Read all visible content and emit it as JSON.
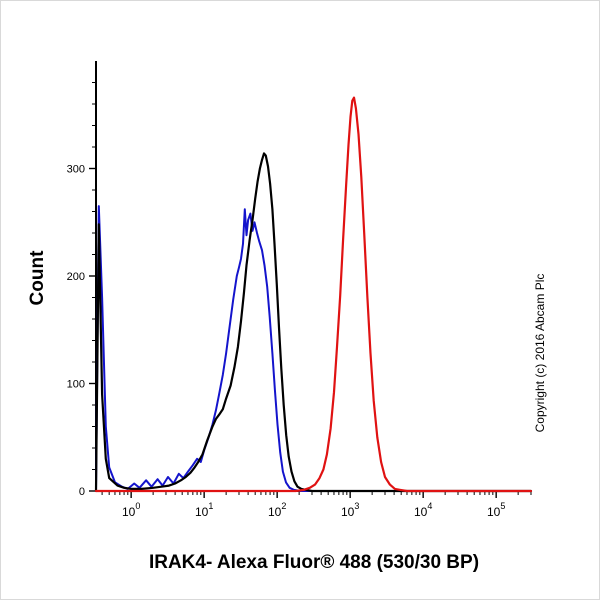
{
  "copyright": "Copyright (c) 2016 Abcam Plc",
  "chart_data": {
    "type": "line",
    "subtype": "flow-cytometry-histogram",
    "title": "",
    "xlabel": "IRAK4- Alexa Fluor® 488 (530/30 BP)",
    "ylabel": "Count",
    "x_scale": "log",
    "xlim": [
      0.33,
      300000
    ],
    "ylim": [
      0,
      400
    ],
    "y_ticks": [
      0,
      100,
      200,
      300
    ],
    "y_minor_step": 20,
    "x_tick_exponents": [
      0,
      1,
      2,
      3,
      4,
      5
    ],
    "grid": false,
    "legend": "none",
    "axis_color": "#000000",
    "background": "#ffffff",
    "series": [
      {
        "name": "blue-control",
        "color": "#1414cc",
        "width": 2,
        "points": [
          [
            0.33,
            0
          ],
          [
            0.36,
            265
          ],
          [
            0.4,
            180
          ],
          [
            0.45,
            60
          ],
          [
            0.5,
            22
          ],
          [
            0.6,
            8
          ],
          [
            0.75,
            4
          ],
          [
            0.9,
            2
          ],
          [
            1.1,
            7
          ],
          [
            1.3,
            3
          ],
          [
            1.6,
            10
          ],
          [
            1.9,
            4
          ],
          [
            2.3,
            11
          ],
          [
            2.7,
            5
          ],
          [
            3.2,
            13
          ],
          [
            3.8,
            7
          ],
          [
            4.5,
            16
          ],
          [
            5.2,
            12
          ],
          [
            6.0,
            18
          ],
          [
            7.0,
            24
          ],
          [
            8.0,
            30
          ],
          [
            9.0,
            27
          ],
          [
            10,
            38
          ],
          [
            11.5,
            50
          ],
          [
            13,
            62
          ],
          [
            14.5,
            75
          ],
          [
            16,
            90
          ],
          [
            18,
            108
          ],
          [
            20,
            128
          ],
          [
            22,
            150
          ],
          [
            25,
            178
          ],
          [
            28,
            200
          ],
          [
            30,
            208
          ],
          [
            32,
            216
          ],
          [
            34,
            230
          ],
          [
            36,
            262
          ],
          [
            38,
            238
          ],
          [
            40,
            252
          ],
          [
            43,
            258
          ],
          [
            46,
            242
          ],
          [
            49,
            250
          ],
          [
            53,
            240
          ],
          [
            57,
            232
          ],
          [
            62,
            224
          ],
          [
            67,
            210
          ],
          [
            73,
            190
          ],
          [
            79,
            162
          ],
          [
            86,
            128
          ],
          [
            93,
            94
          ],
          [
            101,
            62
          ],
          [
            110,
            36
          ],
          [
            120,
            18
          ],
          [
            132,
            8
          ],
          [
            148,
            3
          ],
          [
            170,
            1
          ],
          [
            210,
            0
          ],
          [
            300000,
            0
          ]
        ]
      },
      {
        "name": "black-sample",
        "color": "#000000",
        "width": 2.2,
        "points": [
          [
            0.33,
            0
          ],
          [
            0.36,
            248
          ],
          [
            0.4,
            90
          ],
          [
            0.45,
            30
          ],
          [
            0.5,
            12
          ],
          [
            0.65,
            5
          ],
          [
            0.8,
            3
          ],
          [
            1.0,
            2
          ],
          [
            1.4,
            2
          ],
          [
            2.0,
            3
          ],
          [
            2.6,
            4
          ],
          [
            3.3,
            5
          ],
          [
            4.0,
            7
          ],
          [
            4.8,
            10
          ],
          [
            5.6,
            13
          ],
          [
            6.5,
            17
          ],
          [
            7.4,
            22
          ],
          [
            8.3,
            27
          ],
          [
            9.5,
            34
          ],
          [
            11,
            47
          ],
          [
            13,
            60
          ],
          [
            14.5,
            67
          ],
          [
            16,
            71
          ],
          [
            18,
            76
          ],
          [
            20,
            86
          ],
          [
            23,
            98
          ],
          [
            26,
            115
          ],
          [
            29,
            134
          ],
          [
            32,
            158
          ],
          [
            35,
            184
          ],
          [
            38,
            210
          ],
          [
            42,
            234
          ],
          [
            46,
            252
          ],
          [
            50,
            272
          ],
          [
            54,
            288
          ],
          [
            58,
            300
          ],
          [
            62,
            308
          ],
          [
            66,
            314
          ],
          [
            70,
            312
          ],
          [
            75,
            302
          ],
          [
            80,
            286
          ],
          [
            86,
            262
          ],
          [
            92,
            230
          ],
          [
            99,
            192
          ],
          [
            106,
            152
          ],
          [
            114,
            114
          ],
          [
            123,
            80
          ],
          [
            133,
            52
          ],
          [
            144,
            32
          ],
          [
            157,
            18
          ],
          [
            172,
            9
          ],
          [
            190,
            4
          ],
          [
            215,
            2
          ],
          [
            250,
            1
          ],
          [
            300,
            0
          ],
          [
            300000,
            0
          ]
        ]
      },
      {
        "name": "red-sample",
        "color": "#e01212",
        "width": 2.2,
        "points": [
          [
            0.33,
            0
          ],
          [
            180,
            0
          ],
          [
            230,
            1
          ],
          [
            280,
            3
          ],
          [
            330,
            6
          ],
          [
            380,
            12
          ],
          [
            430,
            20
          ],
          [
            480,
            34
          ],
          [
            540,
            58
          ],
          [
            600,
            92
          ],
          [
            660,
            134
          ],
          [
            730,
            182
          ],
          [
            800,
            234
          ],
          [
            880,
            284
          ],
          [
            950,
            322
          ],
          [
            1010,
            348
          ],
          [
            1070,
            363
          ],
          [
            1130,
            366
          ],
          [
            1200,
            356
          ],
          [
            1300,
            332
          ],
          [
            1420,
            292
          ],
          [
            1560,
            238
          ],
          [
            1720,
            180
          ],
          [
            1900,
            128
          ],
          [
            2100,
            84
          ],
          [
            2350,
            50
          ],
          [
            2650,
            27
          ],
          [
            3000,
            13
          ],
          [
            3500,
            6
          ],
          [
            4100,
            2
          ],
          [
            4900,
            1
          ],
          [
            6000,
            0
          ],
          [
            300000,
            0
          ]
        ]
      }
    ]
  }
}
